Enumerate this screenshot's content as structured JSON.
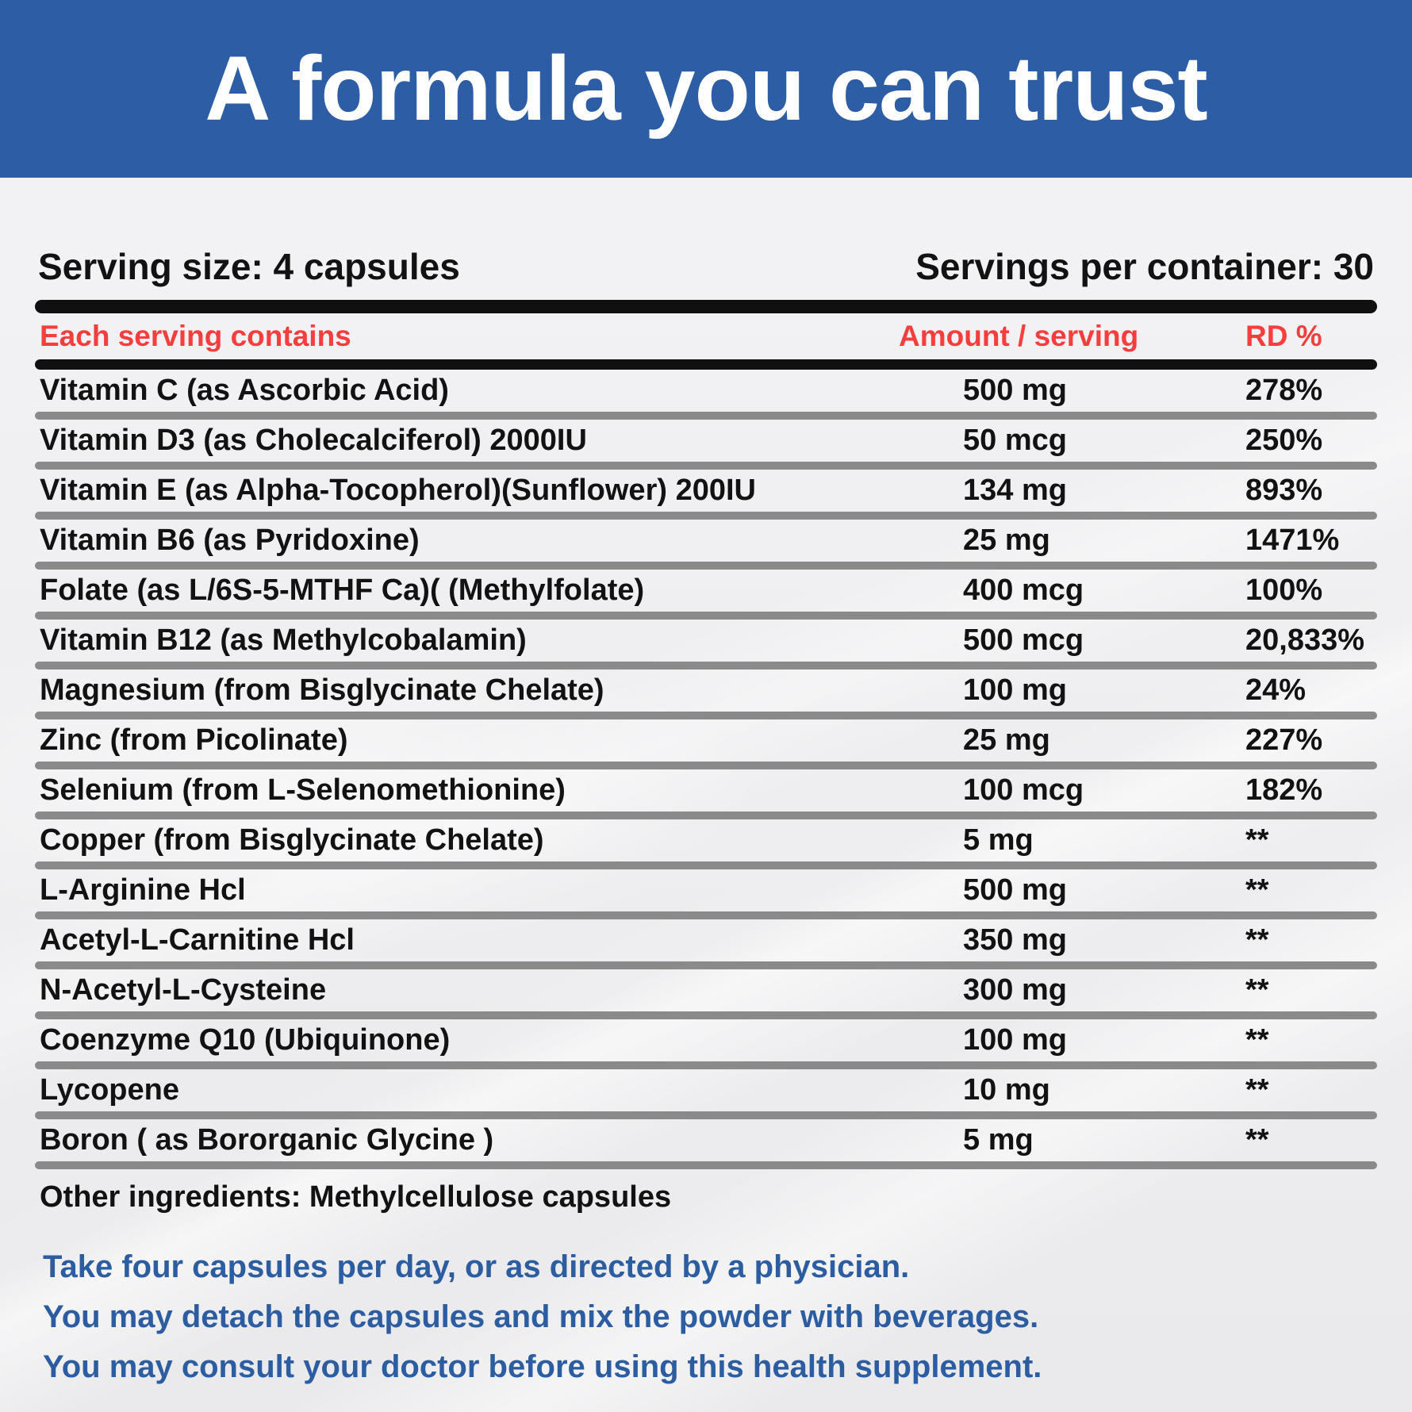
{
  "theme": {
    "banner_bg": "#2d5da4",
    "banner_text": "#ffffff",
    "header_red": "#f73e3e",
    "directions_blue": "#2d5da1",
    "bar_black": "#101010",
    "separator_gray": "#8a8a8a",
    "text_black": "#121212",
    "page_bg": "#f1f1f3"
  },
  "banner": {
    "title": "A formula you can trust"
  },
  "serving_info": {
    "size_label": "Serving size: 4 capsules",
    "per_container_label": "Servings per container: 30"
  },
  "table": {
    "header": {
      "col_ingredient": "Each serving contains",
      "col_amount": "Amount / serving",
      "col_rd": "RD %"
    },
    "rows": [
      {
        "name": "Vitamin C (as Ascorbic Acid)",
        "amount": "500 mg",
        "rd": "278%"
      },
      {
        "name": "Vitamin D3 (as Cholecalciferol) 2000IU",
        "amount": "50 mcg",
        "rd": "250%"
      },
      {
        "name": "Vitamin E (as Alpha-Tocopherol)(Sunflower) 200IU",
        "amount": "134 mg",
        "rd": "893%"
      },
      {
        "name": "Vitamin B6 (as Pyridoxine)",
        "amount": "25 mg",
        "rd": "1471%"
      },
      {
        "name": "Folate (as L/6S-5-MTHF Ca)( (Methylfolate)",
        "amount": "400 mcg",
        "rd": "100%"
      },
      {
        "name": "Vitamin B12 (as Methylcobalamin)",
        "amount": "500 mcg",
        "rd": "20,833%"
      },
      {
        "name": "Magnesium (from Bisglycinate Chelate)",
        "amount": "100 mg",
        "rd": "24%"
      },
      {
        "name": "Zinc (from Picolinate)",
        "amount": "25 mg",
        "rd": "227%"
      },
      {
        "name": "Selenium (from L-Selenomethionine)",
        "amount": "100 mcg",
        "rd": "182%"
      },
      {
        "name": "Copper (from Bisglycinate Chelate)",
        "amount": "5 mg",
        "rd": "**"
      },
      {
        "name": "L-Arginine Hcl",
        "amount": "500 mg",
        "rd": "**"
      },
      {
        "name": "Acetyl-L-Carnitine Hcl",
        "amount": "350 mg",
        "rd": "**"
      },
      {
        "name": "N-Acetyl-L-Cysteine",
        "amount": "300 mg",
        "rd": "**"
      },
      {
        "name": "Coenzyme Q10 (Ubiquinone)",
        "amount": "100 mg",
        "rd": "**"
      },
      {
        "name": "Lycopene",
        "amount": "10 mg",
        "rd": "**"
      },
      {
        "name": "Boron ( as Bororganic Glycine )",
        "amount": "5 mg",
        "rd": "**"
      }
    ],
    "other_ingredients": "Other ingredients: Methylcellulose capsules"
  },
  "directions": {
    "lines": [
      "Take four capsules per day, or as directed by a physician.",
      "You may detach the capsules and mix the powder with beverages.",
      "You may consult your doctor before using this health supplement."
    ]
  }
}
